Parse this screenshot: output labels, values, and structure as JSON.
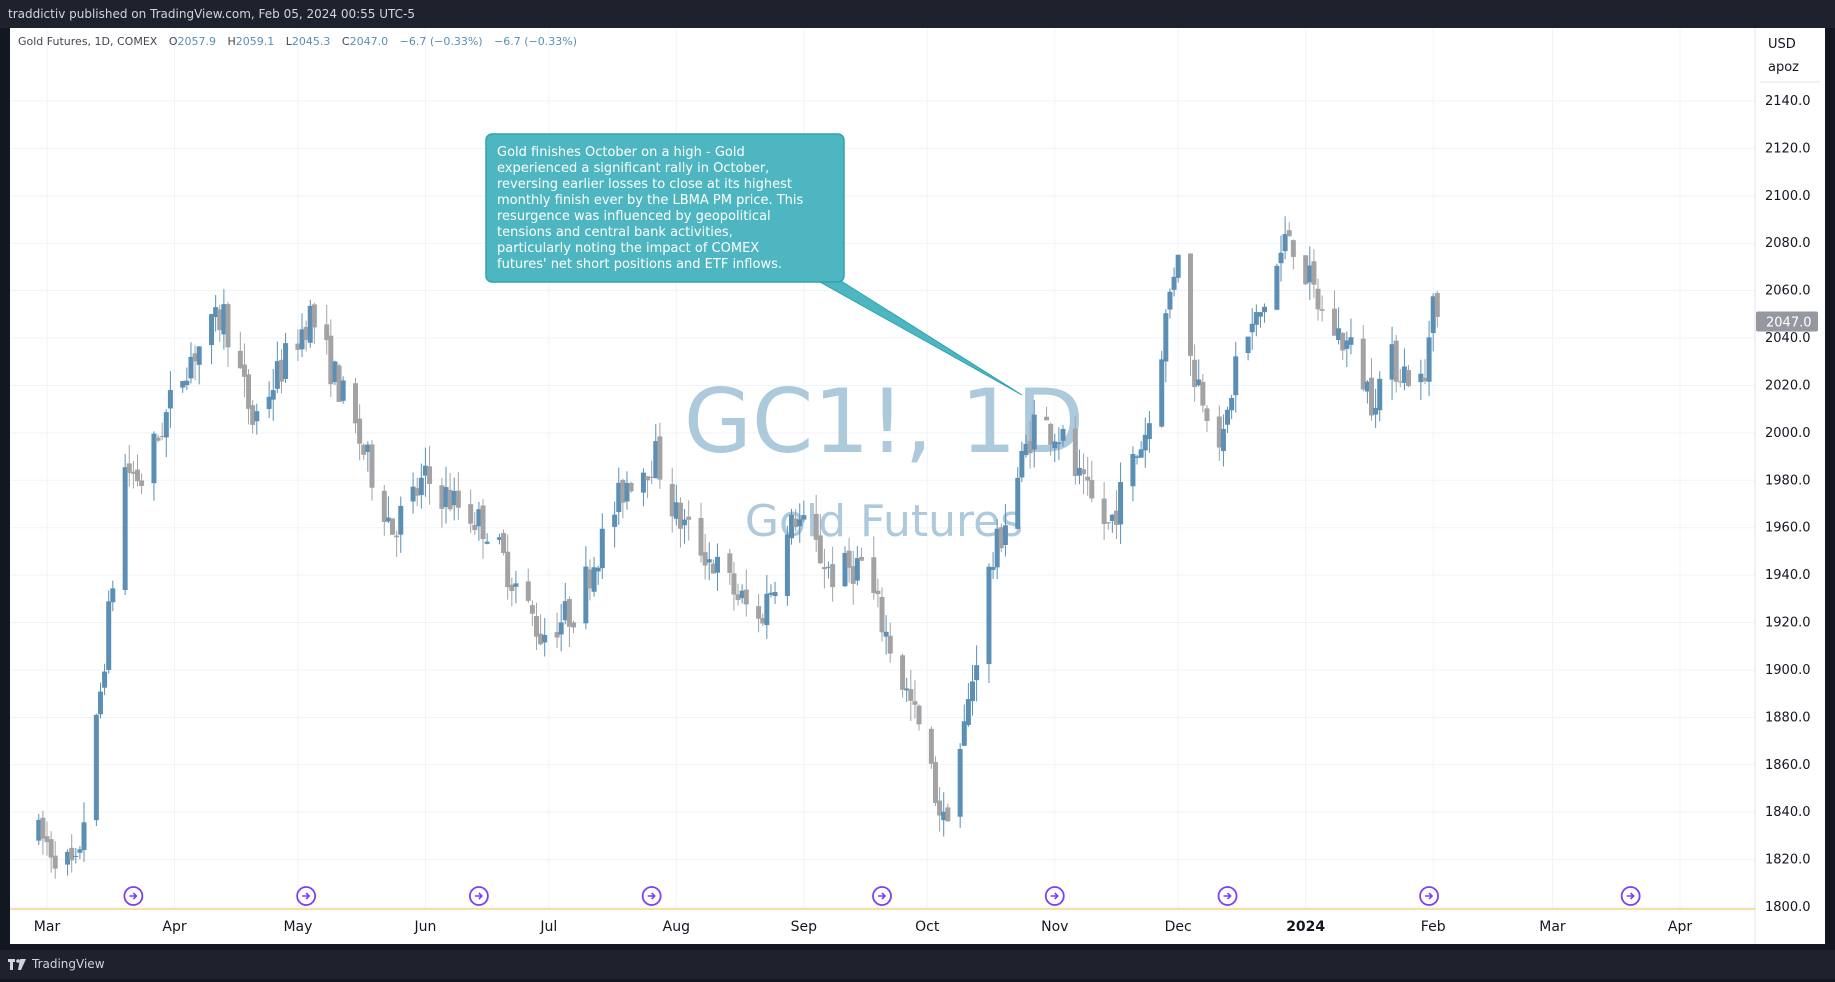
{
  "header": {
    "publisher_line": "traddictiv published on TradingView.com, Feb 05, 2024 00:55 UTC-5"
  },
  "footer": {
    "brand": "TradingView"
  },
  "symbol_legend": {
    "name": "Gold Futures, 1D, COMEX",
    "open_label": "O",
    "open": "2057.9",
    "high_label": "H",
    "high": "2059.1",
    "low_label": "L",
    "low": "2045.3",
    "close_label": "C",
    "close": "2047.0",
    "change": "−6.7 (−0.33%)",
    "change2": "−6.7 (−0.33%)"
  },
  "price_axis": {
    "currency": "USD",
    "unit_label": "apoz",
    "last_price": "2047.0"
  },
  "watermark": {
    "symbol": "GC1!, 1D",
    "description": "Gold Futures"
  },
  "annotation": {
    "lines": [
      "Gold finishes October on a high - Gold",
      "experienced a significant rally in October,",
      "reversing earlier losses to close at its highest",
      "monthly finish ever by the LBMA PM price. This",
      "resurgence was influenced by geopolitical",
      "tensions and central bank activities,",
      "particularly noting the impact of COMEX",
      "futures' net short positions and ETF inflows."
    ]
  },
  "colors": {
    "up": "#5b8fb4",
    "down": "#a3a3a6",
    "callout": "#4db6c1",
    "callout_border": "#2ea4b0",
    "last_price_bg": "#9598a1",
    "event_icon": "#7e3ff2",
    "baseline": "#f0c14b"
  },
  "chart_data": {
    "type": "candlestick",
    "ylim": [
      1800,
      2155
    ],
    "yticks": [
      1800,
      1820,
      1840,
      1860,
      1880,
      1900,
      1920,
      1940,
      1960,
      1980,
      2000,
      2020,
      2040,
      2060,
      2080,
      2100,
      2120,
      2140
    ],
    "ytick_labels": [
      "1800.0",
      "1820.0",
      "1840.0",
      "1860.0",
      "1880.0",
      "1900.0",
      "1920.0",
      "1940.0",
      "1960.0",
      "1980.0",
      "2000.0",
      "2020.0",
      "2040.0",
      "2060.0",
      "2080.0",
      "2100.0",
      "2120.0",
      "2140.0"
    ],
    "xticks": [
      {
        "label": "Mar",
        "date": "2023-03-01"
      },
      {
        "label": "Apr",
        "date": "2023-04-01"
      },
      {
        "label": "May",
        "date": "2023-05-01"
      },
      {
        "label": "Jun",
        "date": "2023-06-01"
      },
      {
        "label": "Jul",
        "date": "2023-07-01"
      },
      {
        "label": "Aug",
        "date": "2023-08-01"
      },
      {
        "label": "Sep",
        "date": "2023-09-01"
      },
      {
        "label": "Oct",
        "date": "2023-10-01"
      },
      {
        "label": "Nov",
        "date": "2023-11-01"
      },
      {
        "label": "Dec",
        "date": "2023-12-01"
      },
      {
        "label": "2024",
        "date": "2024-01-01",
        "bold": true
      },
      {
        "label": "Feb",
        "date": "2024-02-01"
      },
      {
        "label": "Mar",
        "date": "2024-03-01"
      },
      {
        "label": "Apr",
        "date": "2024-04-01"
      }
    ],
    "event_dates": [
      "2023-03-22",
      "2023-05-03",
      "2023-06-14",
      "2023-07-26",
      "2023-09-20",
      "2023-11-01",
      "2023-12-13",
      "2024-01-31",
      "2024-03-20"
    ],
    "anchors": [
      {
        "date": "2023-02-27",
        "price": 1830
      },
      {
        "date": "2023-03-08",
        "price": 1815
      },
      {
        "date": "2023-03-13",
        "price": 1875
      },
      {
        "date": "2023-03-20",
        "price": 1985
      },
      {
        "date": "2023-03-24",
        "price": 1980
      },
      {
        "date": "2023-04-04",
        "price": 2030
      },
      {
        "date": "2023-04-13",
        "price": 2050
      },
      {
        "date": "2023-04-20",
        "price": 2005
      },
      {
        "date": "2023-05-04",
        "price": 2050
      },
      {
        "date": "2023-05-12",
        "price": 2015
      },
      {
        "date": "2023-05-24",
        "price": 1960
      },
      {
        "date": "2023-06-01",
        "price": 1980
      },
      {
        "date": "2023-06-16",
        "price": 1960
      },
      {
        "date": "2023-06-29",
        "price": 1915
      },
      {
        "date": "2023-07-07",
        "price": 1925
      },
      {
        "date": "2023-07-20",
        "price": 1980
      },
      {
        "date": "2023-07-27",
        "price": 1990
      },
      {
        "date": "2023-08-01",
        "price": 1965
      },
      {
        "date": "2023-08-10",
        "price": 1945
      },
      {
        "date": "2023-08-21",
        "price": 1920
      },
      {
        "date": "2023-08-30",
        "price": 1965
      },
      {
        "date": "2023-09-08",
        "price": 1940
      },
      {
        "date": "2023-09-15",
        "price": 1945
      },
      {
        "date": "2023-09-29",
        "price": 1875
      },
      {
        "date": "2023-10-05",
        "price": 1835
      },
      {
        "date": "2023-10-10",
        "price": 1875
      },
      {
        "date": "2023-10-16",
        "price": 1940
      },
      {
        "date": "2023-10-27",
        "price": 2005
      },
      {
        "date": "2023-11-02",
        "price": 2000
      },
      {
        "date": "2023-11-08",
        "price": 1975
      },
      {
        "date": "2023-11-14",
        "price": 1960
      },
      {
        "date": "2023-11-24",
        "price": 2005
      },
      {
        "date": "2023-12-01",
        "price": 2080
      },
      {
        "date": "2023-12-04",
        "price": 2030
      },
      {
        "date": "2023-12-12",
        "price": 1995
      },
      {
        "date": "2023-12-15",
        "price": 2030
      },
      {
        "date": "2023-12-21",
        "price": 2050
      },
      {
        "date": "2023-12-28",
        "price": 2085
      },
      {
        "date": "2024-01-05",
        "price": 2050
      },
      {
        "date": "2024-01-12",
        "price": 2035
      },
      {
        "date": "2024-01-17",
        "price": 2015
      },
      {
        "date": "2024-01-22",
        "price": 2030
      },
      {
        "date": "2024-01-30",
        "price": 2020
      },
      {
        "date": "2024-02-01",
        "price": 2065
      },
      {
        "date": "2024-02-02",
        "price": 2047
      }
    ]
  }
}
